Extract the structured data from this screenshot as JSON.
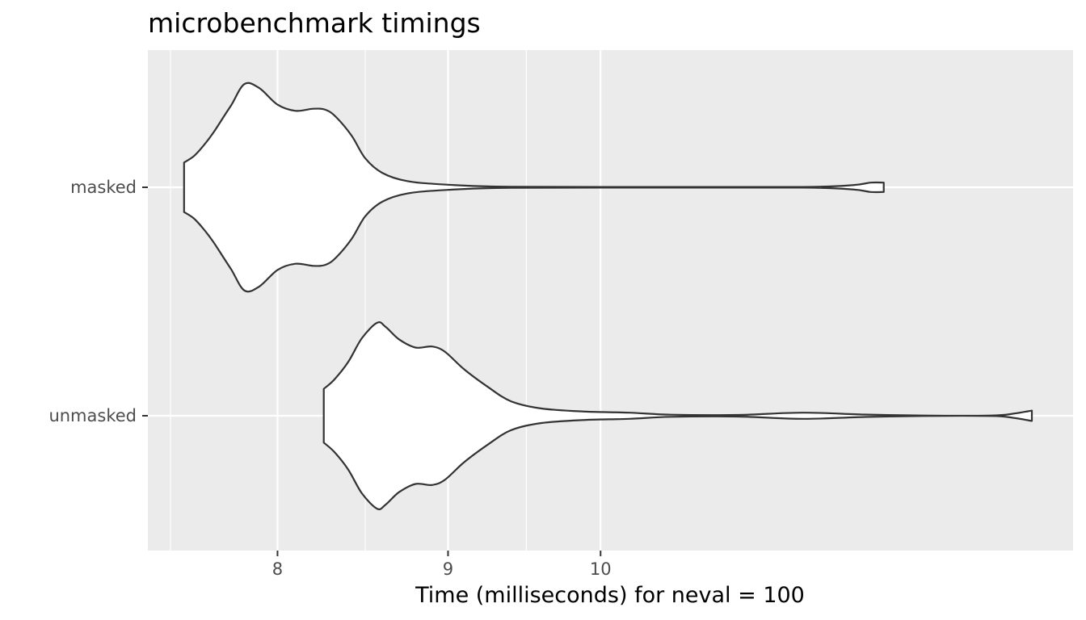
{
  "chart_data": {
    "type": "violin",
    "title": "microbenchmark timings",
    "xlabel": "Time (milliseconds) for neval = 100",
    "ylabel": "",
    "x_scale": "log",
    "xlim": [
      7.43,
      13.47
    ],
    "x_ticks": [
      8,
      9,
      10
    ],
    "x_tick_labels": [
      "8",
      "9",
      "10"
    ],
    "x_minor_gridlines": [
      7.43,
      8.5,
      9.5
    ],
    "categories": [
      "masked",
      "unmasked"
    ],
    "colors": {
      "panel_bg": "#ebebeb",
      "grid": "#ffffff",
      "violin_fill": "#ffffff",
      "violin_stroke": "#333333",
      "tick_label": "#4d4d4d",
      "axis_tick": "#333333"
    },
    "series": [
      {
        "name": "masked",
        "min": 7.5,
        "max": 12.16,
        "density_profile": [
          [
            7.5,
            0.24
          ],
          [
            7.55,
            0.3
          ],
          [
            7.6,
            0.4
          ],
          [
            7.65,
            0.52
          ],
          [
            7.7,
            0.66
          ],
          [
            7.75,
            0.8
          ],
          [
            7.82,
            1.0
          ],
          [
            7.9,
            0.96
          ],
          [
            8.0,
            0.8
          ],
          [
            8.1,
            0.74
          ],
          [
            8.2,
            0.76
          ],
          [
            8.27,
            0.75
          ],
          [
            8.33,
            0.68
          ],
          [
            8.42,
            0.5
          ],
          [
            8.5,
            0.28
          ],
          [
            8.6,
            0.14
          ],
          [
            8.75,
            0.06
          ],
          [
            9.0,
            0.025
          ],
          [
            9.4,
            0.005
          ],
          [
            10.5,
            0.003
          ],
          [
            11.5,
            0.003
          ],
          [
            11.9,
            0.02
          ],
          [
            12.05,
            0.045
          ],
          [
            12.16,
            0.045
          ]
        ]
      },
      {
        "name": "unmasked",
        "min": 8.26,
        "max": 13.47,
        "density_profile": [
          [
            8.26,
            0.26
          ],
          [
            8.32,
            0.35
          ],
          [
            8.4,
            0.52
          ],
          [
            8.48,
            0.75
          ],
          [
            8.57,
            0.9
          ],
          [
            8.62,
            0.86
          ],
          [
            8.7,
            0.74
          ],
          [
            8.8,
            0.66
          ],
          [
            8.9,
            0.67
          ],
          [
            8.98,
            0.62
          ],
          [
            9.1,
            0.45
          ],
          [
            9.25,
            0.28
          ],
          [
            9.4,
            0.14
          ],
          [
            9.6,
            0.07
          ],
          [
            9.9,
            0.04
          ],
          [
            10.2,
            0.03
          ],
          [
            10.5,
            0.01
          ],
          [
            11.0,
            0.008
          ],
          [
            11.5,
            0.03
          ],
          [
            12.0,
            0.012
          ],
          [
            12.5,
            0.002
          ],
          [
            13.1,
            0.002
          ],
          [
            13.3,
            0.02
          ],
          [
            13.47,
            0.05
          ]
        ]
      }
    ]
  }
}
